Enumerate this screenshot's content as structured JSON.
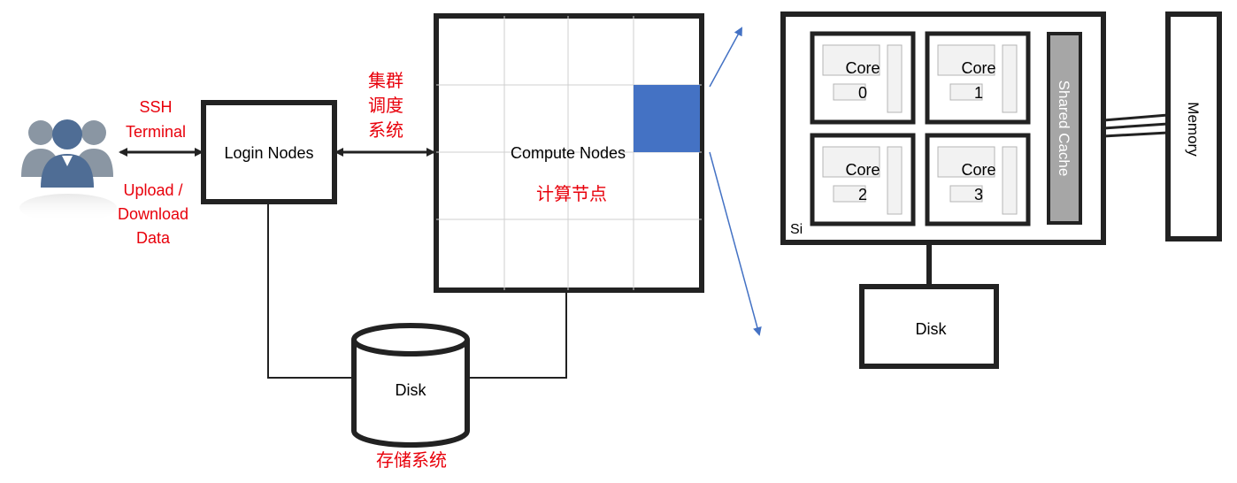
{
  "users": {
    "icon": "users-group-icon"
  },
  "labels": {
    "ssh_line1": "SSH",
    "ssh_line2": "Terminal",
    "upload_line1": "Upload /",
    "upload_line2": "Download",
    "upload_line3": "Data",
    "scheduler_line1": "集群",
    "scheduler_line2": "调度",
    "scheduler_line3": "系统",
    "compute_cn": "计算节点",
    "storage_cn": "存储系统"
  },
  "nodes": {
    "login": "Login Nodes",
    "compute": "Compute Nodes",
    "disk": "Disk"
  },
  "detail": {
    "cores": [
      {
        "label": "Core",
        "index": "0"
      },
      {
        "label": "Core",
        "index": "1"
      },
      {
        "label": "Core",
        "index": "2"
      },
      {
        "label": "Core",
        "index": "3"
      }
    ],
    "shared_cache": "Shared Cache",
    "si": "Si",
    "memory": "Memory",
    "disk": "Disk"
  },
  "colors": {
    "red": "#e8000b",
    "blue": "#4472c4",
    "black": "#000000",
    "grid": "#cfcfcf",
    "cache": "#a6a6a6",
    "users": "#6e7a88",
    "users_front": "#4f6d95"
  }
}
